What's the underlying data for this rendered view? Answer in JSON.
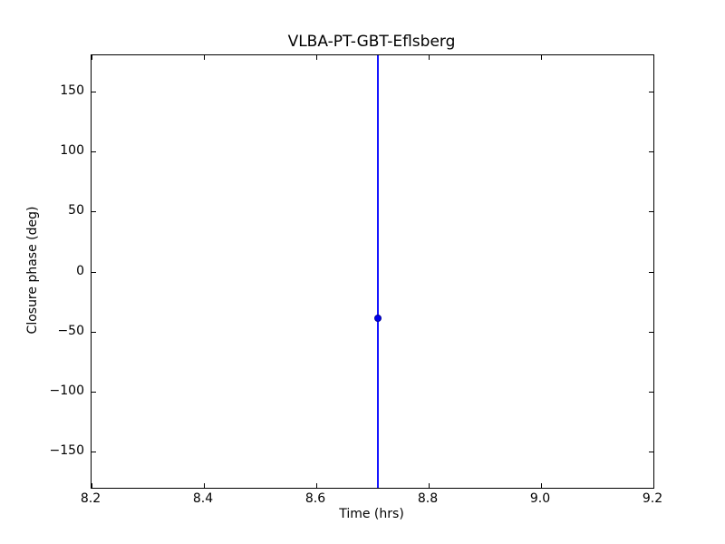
{
  "figure": {
    "background_color": "#ffffff",
    "frame_color": "#000000",
    "text_color": "#000000"
  },
  "chart_data": {
    "type": "scatter",
    "title": "VLBA-PT-GBT-Eflsberg",
    "xlabel": "Time (hrs)",
    "ylabel": "Closure phase (deg)",
    "xlim": [
      8.2,
      9.2
    ],
    "ylim": [
      -180,
      180
    ],
    "xticks": [
      8.2,
      8.4,
      8.6,
      8.8,
      9.0,
      9.2
    ],
    "xtick_labels": [
      "8.2",
      "8.4",
      "8.6",
      "8.8",
      "9.0",
      "9.2"
    ],
    "yticks": [
      -150,
      -100,
      -50,
      0,
      50,
      100,
      150
    ],
    "ytick_labels": [
      "−150",
      "−100",
      "−50",
      "0",
      "50",
      "100",
      "150"
    ],
    "grid": false,
    "legend": null,
    "series": [
      {
        "name": "closure phase",
        "marker": "o",
        "color": "#0000ee",
        "marker_edge_color": "#000099",
        "errorbar_color": "#1515ff",
        "points": [
          {
            "x": 8.71,
            "y": -39,
            "yerr_spans_full_axis": true
          }
        ]
      }
    ]
  }
}
